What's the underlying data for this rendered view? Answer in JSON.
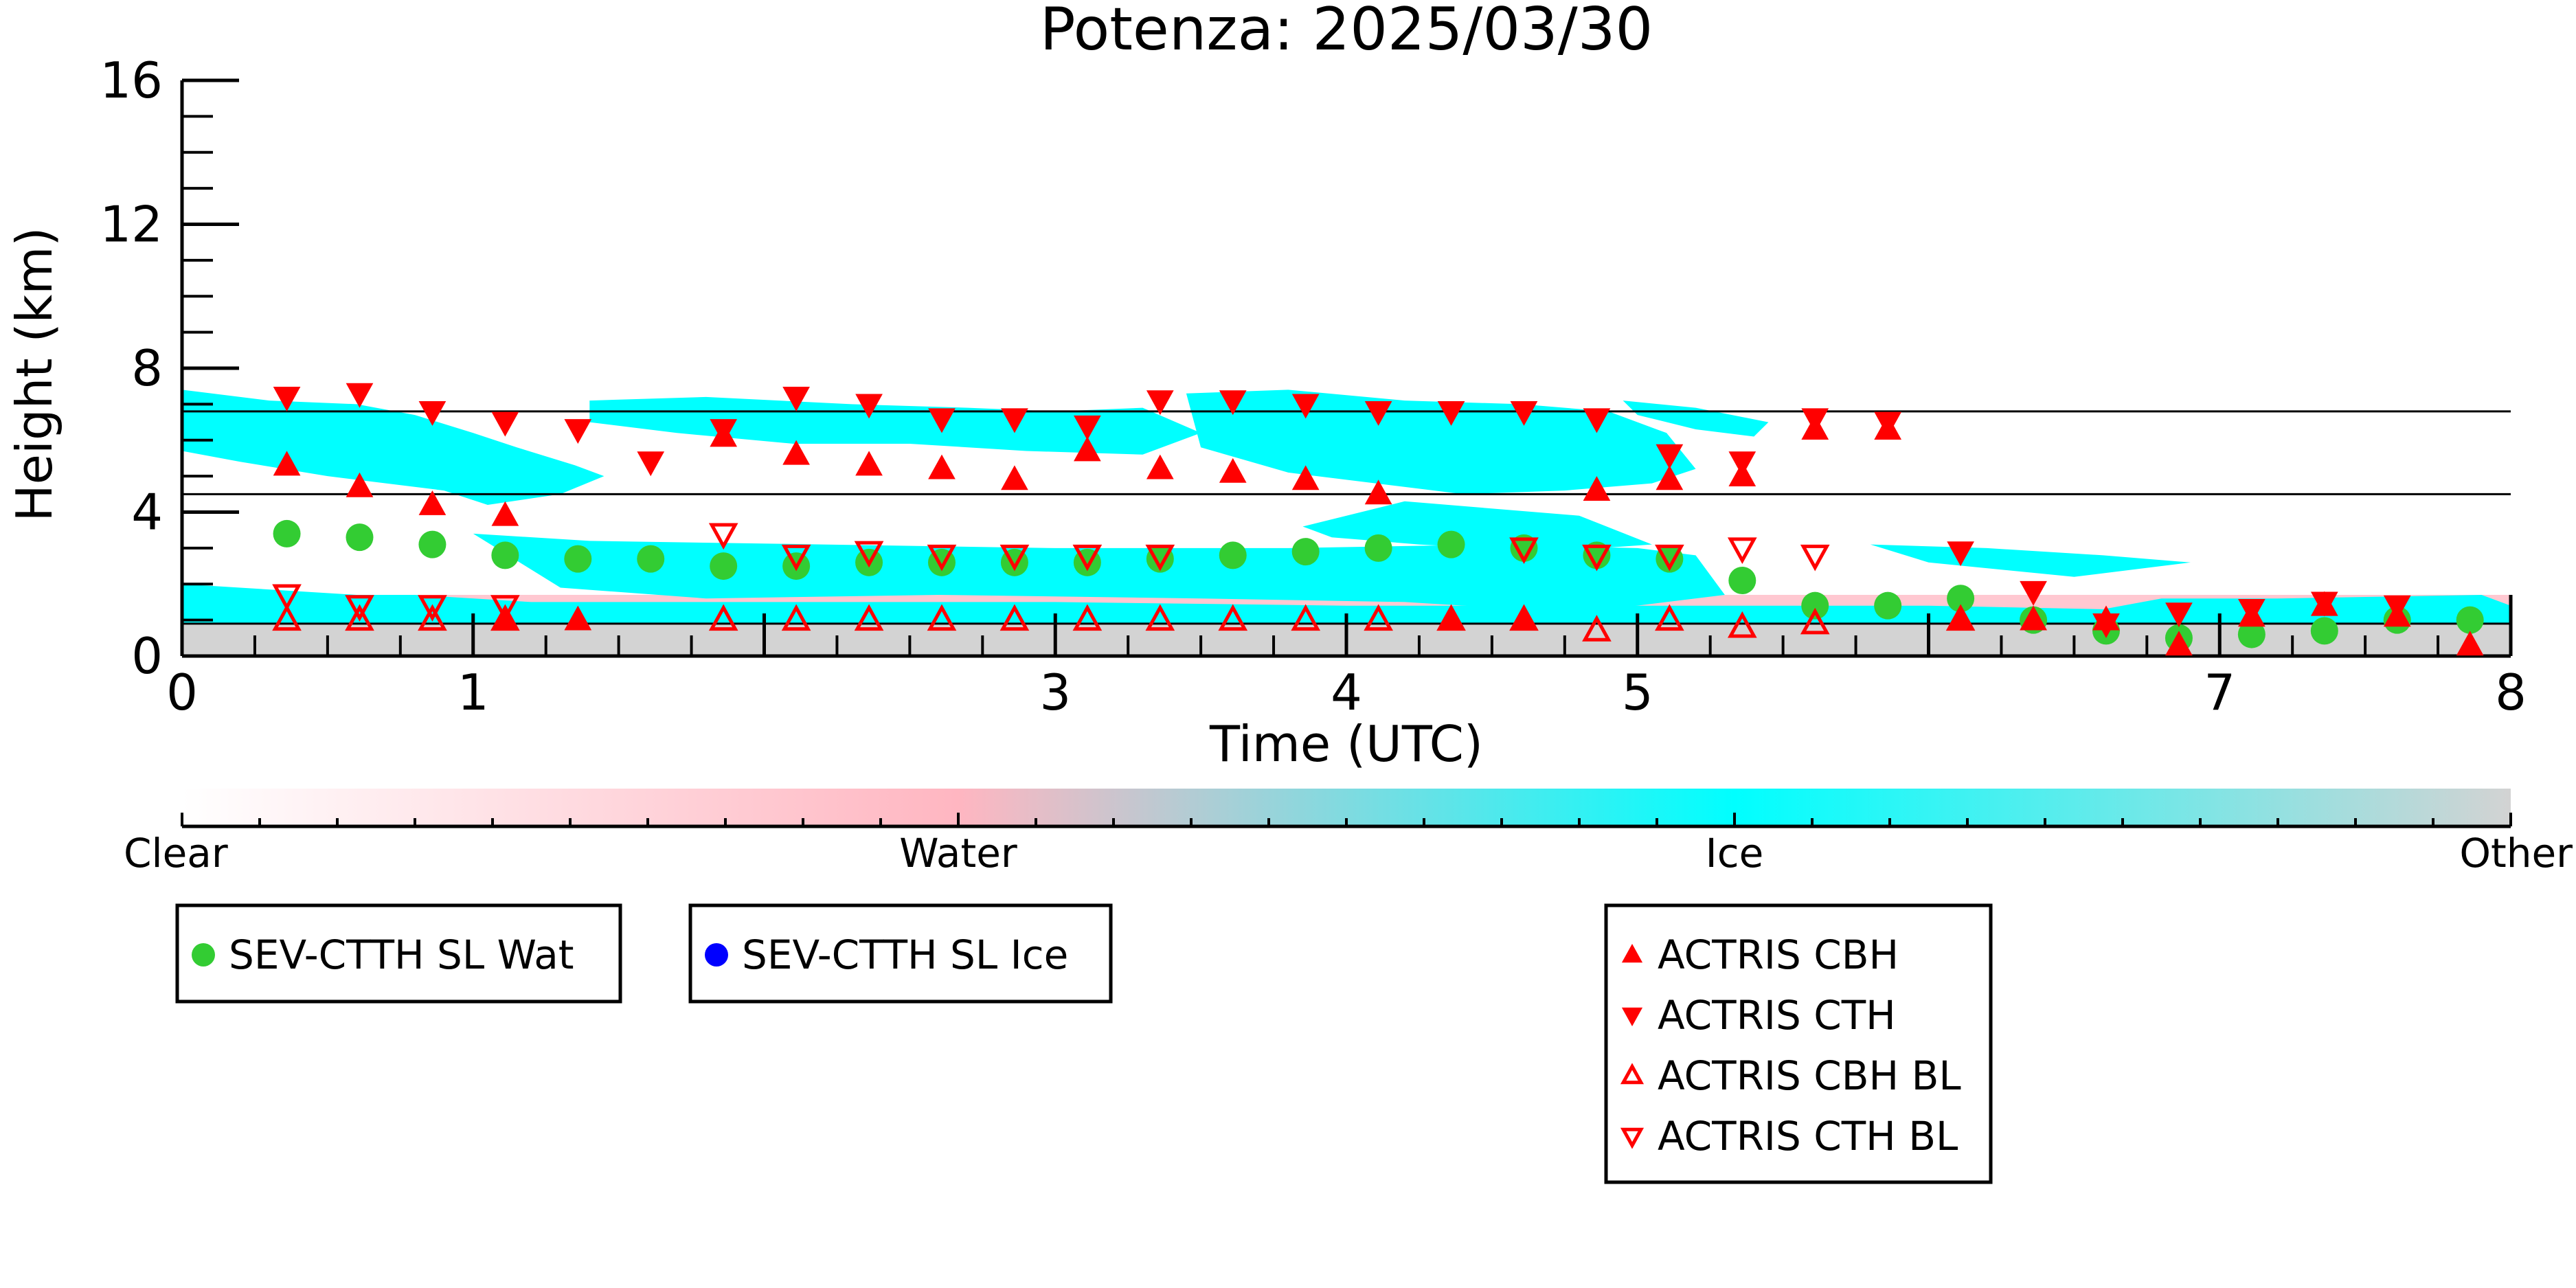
{
  "chart_data": {
    "type": "scatter",
    "title": "Potenza: 2025/03/30",
    "xlabel": "Time (UTC)",
    "ylabel": "Height (km)",
    "xlim": [
      0,
      8
    ],
    "ylim": [
      0,
      16
    ],
    "x_ticks": [
      "0",
      "1",
      "3",
      "4",
      "5",
      "7",
      "8"
    ],
    "y_ticks": [
      "0",
      "4",
      "8",
      "12",
      "16"
    ],
    "reference_lines_km": [
      6.8,
      4.5,
      0.9
    ],
    "colorbar": {
      "labels": [
        "Clear",
        "Water",
        "Ice",
        "Other"
      ],
      "colors": [
        "#ffffff",
        "#ffb6c1",
        "#00ffff",
        "#d3d3d3"
      ]
    },
    "background_classification": {
      "colors": {
        "ice": "#00ffff",
        "water": "#ffb6c1",
        "other": "#d3d3d3"
      },
      "ice_regions": [
        {
          "x": [
            0.0,
            0.3,
            0.6,
            0.8,
            1.0,
            1.15,
            1.35,
            1.45,
            1.3,
            1.05,
            0.9,
            0.5,
            0.2,
            0.0
          ],
          "y": [
            7.4,
            7.1,
            7.0,
            6.7,
            6.2,
            5.8,
            5.3,
            5.0,
            4.5,
            4.2,
            4.6,
            5.0,
            5.4,
            5.7
          ]
        },
        {
          "x": [
            1.4,
            1.8,
            2.3,
            2.7,
            3.0,
            3.3,
            3.5,
            3.3,
            2.9,
            2.5,
            2.1,
            1.7,
            1.4
          ],
          "y": [
            7.1,
            7.2,
            7.0,
            6.9,
            6.8,
            6.9,
            6.2,
            5.6,
            5.7,
            5.9,
            5.9,
            6.2,
            6.5
          ]
        },
        {
          "x": [
            3.45,
            3.8,
            4.2,
            4.6,
            4.9,
            5.1,
            5.2,
            5.05,
            4.75,
            4.4,
            4.1,
            3.8,
            3.5
          ],
          "y": [
            7.3,
            7.4,
            7.1,
            7.0,
            6.8,
            6.2,
            5.2,
            4.8,
            4.6,
            4.5,
            4.8,
            5.1,
            5.8
          ]
        },
        {
          "x": [
            4.95,
            5.2,
            5.45,
            5.4,
            5.2,
            5.0
          ],
          "y": [
            7.1,
            6.9,
            6.5,
            6.1,
            6.3,
            6.7
          ]
        },
        {
          "x": [
            1.0,
            1.4,
            2.2,
            3.0,
            3.8,
            4.5,
            5.0,
            5.2,
            5.3,
            4.8,
            4.2,
            3.5,
            2.6,
            1.8,
            1.3
          ],
          "y": [
            3.4,
            3.2,
            3.1,
            3.0,
            3.0,
            3.1,
            3.0,
            2.8,
            1.7,
            1.2,
            1.5,
            1.6,
            1.7,
            1.6,
            1.9
          ]
        },
        {
          "x": [
            3.85,
            4.2,
            4.8,
            5.05,
            4.7,
            4.25,
            3.95
          ],
          "y": [
            3.6,
            4.3,
            3.9,
            3.1,
            2.9,
            3.1,
            3.3
          ]
        },
        {
          "x": [
            5.8,
            6.2,
            6.6,
            6.9,
            6.5,
            6.0
          ],
          "y": [
            3.1,
            3.0,
            2.8,
            2.6,
            2.2,
            2.6
          ]
        },
        {
          "x": [
            0.0,
            0.6,
            0.8,
            1.2,
            2.0,
            3.0,
            4.0,
            5.0,
            6.0,
            6.6,
            6.8,
            7.2,
            7.9,
            8.0,
            8.0,
            0.0
          ],
          "y": [
            2.0,
            1.7,
            1.7,
            1.5,
            1.5,
            1.5,
            1.4,
            1.4,
            1.4,
            1.3,
            1.6,
            1.6,
            1.7,
            1.4,
            0.9,
            0.9
          ]
        }
      ],
      "water_band": {
        "x": [
          0,
          8
        ],
        "y": [
          0.9,
          1.7
        ]
      },
      "other_band": {
        "x": [
          0,
          8
        ],
        "y": [
          0.0,
          0.9
        ]
      }
    },
    "series": [
      {
        "name": "SEV-CTTH SL Wat",
        "marker": "filled-circle",
        "color": "#33cc33",
        "x": [
          0.36,
          0.61,
          0.86,
          1.11,
          1.36,
          1.61,
          1.86,
          2.11,
          2.36,
          2.61,
          2.86,
          3.11,
          3.36,
          3.61,
          3.86,
          4.11,
          4.36,
          4.61,
          4.86,
          5.11,
          5.36,
          5.61,
          5.86,
          6.11,
          6.36,
          6.61,
          6.86,
          7.11,
          7.36,
          7.61,
          7.86
        ],
        "y": [
          3.4,
          3.3,
          3.1,
          2.8,
          2.7,
          2.7,
          2.5,
          2.5,
          2.6,
          2.6,
          2.6,
          2.6,
          2.7,
          2.8,
          2.9,
          3.0,
          3.1,
          3.0,
          2.8,
          2.7,
          2.1,
          1.4,
          1.4,
          1.6,
          1.0,
          0.7,
          0.5,
          0.6,
          0.7,
          1.0,
          1.0
        ]
      },
      {
        "name": "SEV-CTTH SL Ice",
        "marker": "filled-circle",
        "color": "#0000ff",
        "x": [],
        "y": []
      },
      {
        "name": "ACTRIS CBH",
        "marker": "filled-triangle-up",
        "color": "#ff0000",
        "x": [
          0.36,
          0.61,
          0.86,
          1.11,
          1.86,
          2.11,
          2.36,
          2.61,
          2.86,
          3.11,
          3.36,
          3.61,
          3.86,
          4.11,
          4.36,
          4.61,
          4.86,
          5.11,
          5.36,
          5.61,
          5.86,
          6.11,
          6.36,
          6.61,
          6.86,
          7.11,
          7.36,
          7.61,
          7.86,
          1.11,
          1.36,
          6.36,
          6.61
        ],
        "y": [
          5.3,
          4.7,
          4.2,
          3.9,
          6.1,
          5.6,
          5.3,
          5.2,
          4.9,
          5.7,
          5.2,
          5.1,
          4.9,
          4.5,
          1.0,
          1.0,
          4.6,
          4.9,
          5.0,
          6.3,
          6.3,
          1.0,
          1.0,
          1.0,
          0.3,
          1.1,
          1.4,
          1.1,
          0.3,
          1.0,
          1.0,
          1.0,
          1.0
        ]
      },
      {
        "name": "ACTRIS CTH",
        "marker": "filled-triangle-down",
        "color": "#ff0000",
        "x": [
          0.36,
          0.61,
          0.86,
          1.11,
          1.36,
          1.61,
          1.86,
          2.11,
          2.36,
          2.61,
          2.86,
          3.11,
          3.36,
          3.61,
          3.86,
          4.11,
          4.36,
          4.61,
          4.86,
          5.11,
          5.36,
          5.61,
          5.86,
          6.11,
          6.36,
          6.61,
          6.86,
          7.11,
          7.36,
          7.61
        ],
        "y": [
          7.2,
          7.3,
          6.8,
          6.5,
          6.3,
          5.4,
          6.3,
          7.2,
          7.0,
          6.6,
          6.6,
          6.4,
          7.1,
          7.1,
          7.0,
          6.8,
          6.8,
          6.8,
          6.6,
          5.6,
          5.4,
          6.6,
          6.5,
          2.9,
          1.8,
          0.9,
          1.2,
          1.3,
          1.5,
          1.4
        ]
      },
      {
        "name": "ACTRIS CBH BL",
        "marker": "open-triangle-up",
        "color": "#ff0000",
        "x": [
          0.36,
          0.61,
          0.86,
          1.11,
          1.86,
          2.11,
          2.36,
          2.61,
          2.86,
          3.11,
          3.36,
          3.61,
          3.86,
          4.11,
          4.36,
          4.61,
          4.86,
          5.11,
          5.36,
          5.61,
          6.11
        ],
        "y": [
          1.0,
          1.0,
          1.0,
          1.0,
          1.0,
          1.0,
          1.0,
          1.0,
          1.0,
          1.0,
          1.0,
          1.0,
          1.0,
          1.0,
          1.0,
          1.0,
          0.7,
          1.0,
          0.8,
          0.9,
          1.0
        ]
      },
      {
        "name": "ACTRIS CTH BL",
        "marker": "open-triangle-down",
        "color": "#ff0000",
        "x": [
          0.36,
          0.61,
          0.86,
          1.11,
          1.86,
          2.11,
          2.36,
          2.61,
          2.86,
          3.11,
          3.36,
          4.61,
          4.86,
          5.11,
          5.36,
          5.61
        ],
        "y": [
          1.7,
          1.4,
          1.4,
          1.4,
          3.4,
          2.8,
          2.9,
          2.8,
          2.8,
          2.8,
          2.8,
          3.0,
          2.8,
          2.8,
          3.0,
          2.8
        ]
      }
    ],
    "legend_groups": [
      [
        "SEV-CTTH SL Wat"
      ],
      [
        "SEV-CTTH SL Ice"
      ],
      [
        "ACTRIS CBH",
        "ACTRIS CTH",
        "ACTRIS CBH BL",
        "ACTRIS CTH BL"
      ]
    ]
  }
}
